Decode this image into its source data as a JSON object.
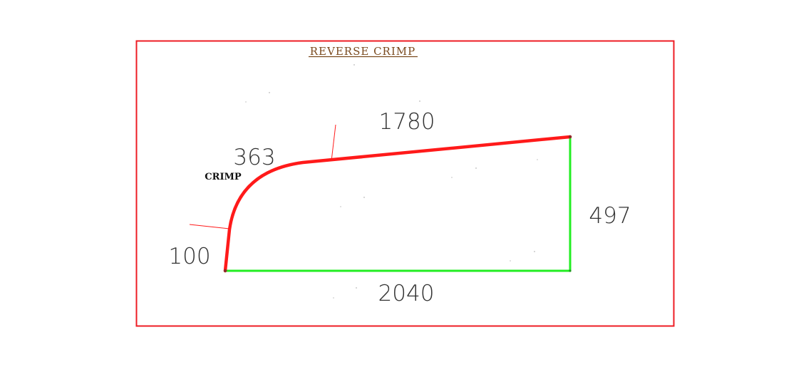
{
  "drawing": {
    "title": "REVERSE CRIMP",
    "crimp_label": "CRIMP",
    "dimensions": {
      "top_slope": "1780",
      "radius_segment": "363",
      "left_segment": "100",
      "right_side": "497",
      "bottom": "2040"
    },
    "colors": {
      "frame": "#ee1c24",
      "profile_red": "#ff1a1a",
      "profile_green": "#22ee22",
      "title": "#7a4a1e"
    }
  }
}
